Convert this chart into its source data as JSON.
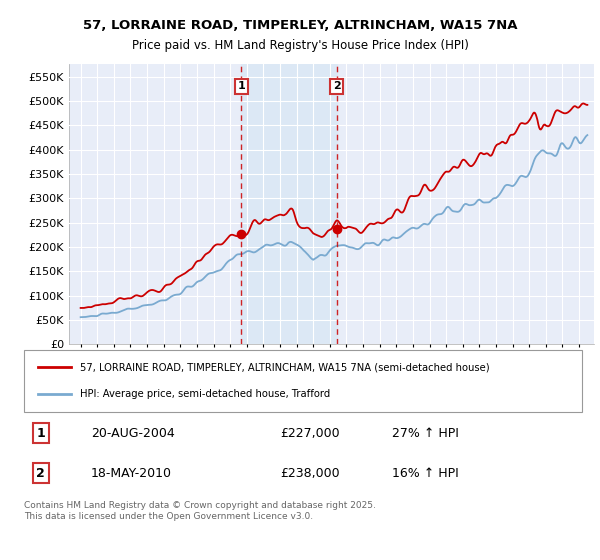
{
  "title1": "57, LORRAINE ROAD, TIMPERLEY, ALTRINCHAM, WA15 7NA",
  "title2": "Price paid vs. HM Land Registry's House Price Index (HPI)",
  "background_color": "#ffffff",
  "plot_bg_color": "#e8edf8",
  "shaded_region_color": "#dce8f5",
  "legend_label1": "57, LORRAINE ROAD, TIMPERLEY, ALTRINCHAM, WA15 7NA (semi-detached house)",
  "legend_label2": "HPI: Average price, semi-detached house, Trafford",
  "line1_color": "#cc0000",
  "line2_color": "#7aaad0",
  "vline_color": "#cc0000",
  "marker_box_color": "#cc3333",
  "sale1_x": 2004.667,
  "sale1_y": 227000,
  "sale2_x": 2010.417,
  "sale2_y": 238000,
  "footnote": "Contains HM Land Registry data © Crown copyright and database right 2025.\nThis data is licensed under the Open Government Licence v3.0.",
  "ylim": [
    0,
    575000
  ],
  "xlim_left": 1994.3,
  "xlim_right": 2025.9,
  "yticks": [
    0,
    50000,
    100000,
    150000,
    200000,
    250000,
    300000,
    350000,
    400000,
    450000,
    500000,
    550000
  ],
  "ytick_labels": [
    "£0",
    "£50K",
    "£100K",
    "£150K",
    "£200K",
    "£250K",
    "£300K",
    "£350K",
    "£400K",
    "£450K",
    "£500K",
    "£550K"
  ]
}
